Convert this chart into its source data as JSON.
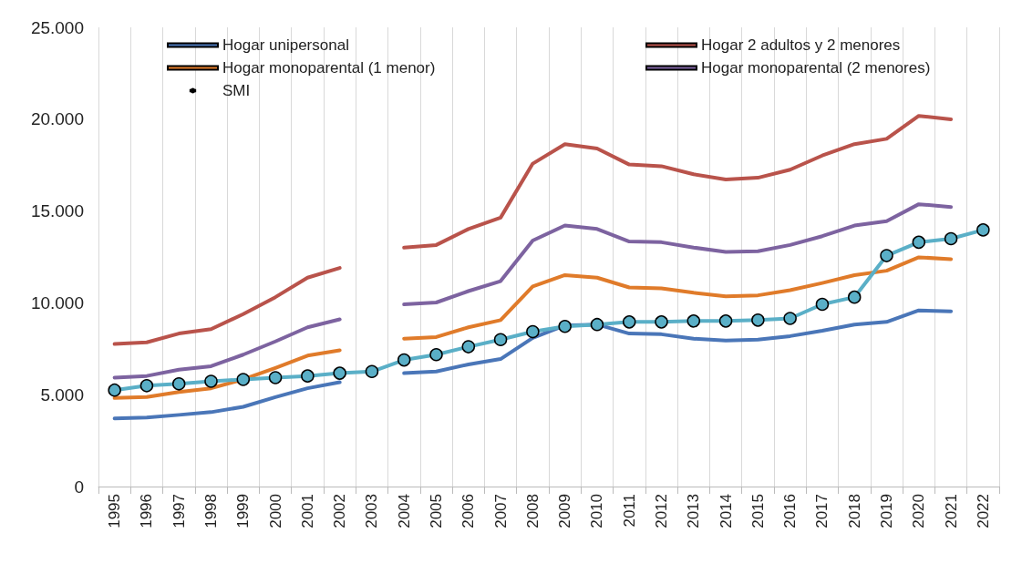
{
  "chart_data": {
    "type": "line",
    "categories": [
      "1995",
      "1996",
      "1997",
      "1998",
      "1999",
      "2000",
      "2001",
      "2002",
      "2003",
      "2004",
      "2005",
      "2006",
      "2007",
      "2008",
      "2009",
      "2010",
      "2011",
      "2012",
      "2013",
      "2014",
      "2015",
      "2016",
      "2017",
      "2018",
      "2019",
      "2020",
      "2021",
      "2022"
    ],
    "series": [
      {
        "name": "Hogar unipersonal",
        "color": "#4a76b8",
        "marker": "none",
        "values": [
          3710,
          3760,
          3900,
          4050,
          4340,
          4870,
          5350,
          5680,
          null,
          6170,
          6260,
          6650,
          6940,
          8090,
          8770,
          8820,
          8330,
          8290,
          8050,
          7950,
          8000,
          8190,
          8480,
          8820,
          8960,
          9590,
          9540,
          null
        ]
      },
      {
        "name": "Hogar 2 adultos y 2 menores",
        "color": "#b9534b",
        "marker": "none",
        "values": [
          7760,
          7850,
          8330,
          8570,
          9390,
          10310,
          11370,
          11900,
          null,
          13010,
          13150,
          14020,
          14640,
          17580,
          18640,
          18400,
          17530,
          17440,
          17000,
          16720,
          16810,
          17250,
          18020,
          18640,
          18930,
          20180,
          19990,
          null
        ]
      },
      {
        "name": "Hogar monoparental (1 menor)",
        "color": "#e07b2a",
        "marker": "none",
        "values": [
          4820,
          4870,
          5150,
          5350,
          5830,
          6460,
          7130,
          7420,
          null,
          8050,
          8140,
          8670,
          9060,
          10890,
          11510,
          11370,
          10840,
          10790,
          10550,
          10360,
          10410,
          10690,
          11080,
          11510,
          11750,
          12480,
          12380,
          null
        ]
      },
      {
        "name": "Hogar monoparental (2 menores)",
        "color": "#7d63a0",
        "marker": "none",
        "values": [
          5930,
          6020,
          6360,
          6550,
          7180,
          7900,
          8670,
          9100,
          null,
          9920,
          10020,
          10640,
          11180,
          13390,
          14210,
          14020,
          13340,
          13300,
          13010,
          12770,
          12810,
          13150,
          13630,
          14210,
          14450,
          15370,
          15220,
          null
        ]
      },
      {
        "name": "SMI",
        "color": "#5aafc7",
        "marker": "circle",
        "values": [
          5250,
          5490,
          5590,
          5730,
          5830,
          5930,
          6020,
          6170,
          6260,
          6890,
          7180,
          7610,
          8000,
          8430,
          8720,
          8820,
          8960,
          8960,
          9010,
          9010,
          9060,
          9150,
          9920,
          10310,
          12570,
          13300,
          13490,
          13970
        ]
      }
    ],
    "ylim": [
      0,
      25000
    ],
    "yticks": [
      {
        "value": 0,
        "label": "0"
      },
      {
        "value": 5000,
        "label": "5.000"
      },
      {
        "value": 10000,
        "label": "10.000"
      },
      {
        "value": 15000,
        "label": "15.000"
      },
      {
        "value": 20000,
        "label": "20.000"
      },
      {
        "value": 25000,
        "label": "25.000"
      }
    ],
    "grid": "x",
    "legend": "top"
  }
}
